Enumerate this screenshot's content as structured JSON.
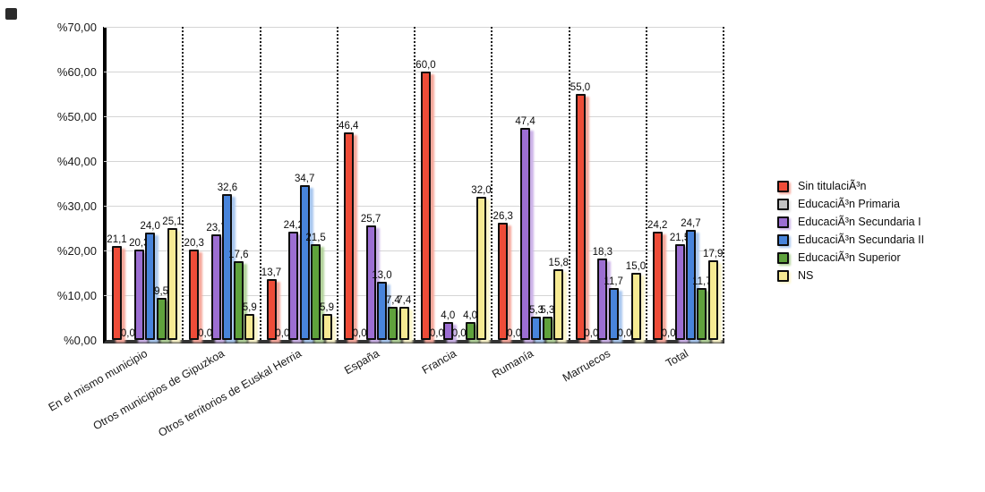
{
  "chart_data": {
    "type": "bar",
    "title": "",
    "categories": [
      "En el mismo municipio",
      "Otros municipios de Gipuzkoa",
      "Otros territorios de Euskal Herria",
      "España",
      "Francia",
      "Rumanía",
      "Marruecos",
      "Total"
    ],
    "series": [
      {
        "name": "Sin titulaciÃ³n",
        "color": "#ee4c38",
        "shadow": "#f6a89c",
        "values": [
          21.1,
          20.3,
          13.7,
          46.4,
          60.0,
          26.3,
          55.0,
          24.2
        ]
      },
      {
        "name": "EducaciÃ³n Primaria",
        "color": "#c2c2c2",
        "shadow": "#e3e3e3",
        "values": [
          0.0,
          0.0,
          0.0,
          0.0,
          0.0,
          0.0,
          0.0,
          0.0
        ]
      },
      {
        "name": "EducaciÃ³n Secundaria I",
        "color": "#9c6ed2",
        "shadow": "#ccb3e8",
        "values": [
          20.3,
          23.7,
          24.2,
          25.7,
          4.0,
          47.4,
          18.3,
          21.5
        ]
      },
      {
        "name": "EducaciÃ³n Secundaria II",
        "color": "#4884db",
        "shadow": "#aac8ef",
        "values": [
          24.0,
          32.6,
          34.7,
          13.0,
          0.0,
          5.3,
          11.7,
          24.7
        ]
      },
      {
        "name": "EducaciÃ³n Superior",
        "color": "#5fa23c",
        "shadow": "#b3d39b",
        "values": [
          9.5,
          17.6,
          21.5,
          7.4,
          4.0,
          5.3,
          0.0,
          11.7
        ]
      },
      {
        "name": "NS",
        "color": "#f6ea93",
        "shadow": "#fbf5cb",
        "values": [
          25.1,
          5.9,
          5.9,
          7.4,
          32.0,
          15.8,
          15.0,
          17.9
        ]
      }
    ],
    "y_ticks": [
      {
        "value": 0,
        "label": "%0,00"
      },
      {
        "value": 10,
        "label": "%10,00"
      },
      {
        "value": 20,
        "label": "%20,00"
      },
      {
        "value": 30,
        "label": "%30,00"
      },
      {
        "value": 40,
        "label": "%40,00"
      },
      {
        "value": 50,
        "label": "%50,00"
      },
      {
        "value": 60,
        "label": "%60,00"
      },
      {
        "value": 70,
        "label": "%70,00"
      }
    ],
    "ylim": [
      0,
      70
    ],
    "xlabel": "",
    "ylabel": "",
    "grid": "horizontal solid lines every 10%, vertical dotted separators between category groups",
    "legend_position": "right",
    "value_label_format": "one decimal, comma as decimal separator"
  }
}
